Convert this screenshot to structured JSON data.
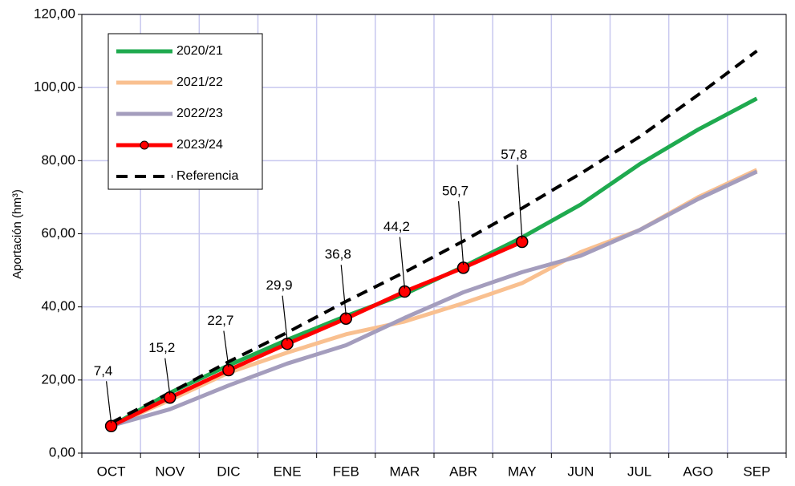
{
  "chart_data": {
    "type": "line",
    "y_label": "Aportación (hm³)",
    "categories": [
      "OCT",
      "NOV",
      "DIC",
      "ENE",
      "FEB",
      "MAR",
      "ABR",
      "MAY",
      "JUN",
      "JUL",
      "AGO",
      "SEP"
    ],
    "series": [
      {
        "name": "2020/21",
        "color": "#1faa4f",
        "values": [
          7.4,
          16.5,
          24,
          31,
          37.5,
          43.5,
          51,
          59,
          68,
          79,
          88.5,
          97
        ]
      },
      {
        "name": "2021/22",
        "color": "#f9c090",
        "values": [
          7.5,
          14.5,
          22,
          27.5,
          32.5,
          36,
          41,
          46.5,
          55,
          61,
          70,
          77.5
        ]
      },
      {
        "name": "2022/23",
        "color": "#a49dbd",
        "values": [
          7.5,
          12,
          18.5,
          24.5,
          29.5,
          37,
          44,
          49.5,
          54,
          61,
          69.5,
          77
        ]
      },
      {
        "name": "2023/24",
        "color": "#ff0000",
        "marker": true,
        "values": [
          7.4,
          15.2,
          22.7,
          29.9,
          36.8,
          44.2,
          50.7,
          57.8,
          null,
          null,
          null,
          null
        ],
        "value_labels": [
          "7,4",
          "15,2",
          "22,7",
          "29,9",
          "36,8",
          "44,2",
          "50,7",
          "57,8",
          null,
          null,
          null,
          null
        ]
      },
      {
        "name": "Referencia",
        "color": "#000000",
        "dashed": true,
        "values": [
          8.3,
          16.5,
          25,
          33,
          41.5,
          49.5,
          58,
          67,
          76.5,
          86.5,
          98,
          110
        ]
      }
    ],
    "ylim": [
      0,
      120
    ],
    "yticks": [
      {
        "value": 0,
        "label": "0,00"
      },
      {
        "value": 20,
        "label": "20,00"
      },
      {
        "value": 40,
        "label": "40,00"
      },
      {
        "value": 60,
        "label": "60,00"
      },
      {
        "value": 80,
        "label": "80,00"
      },
      {
        "value": 100,
        "label": "100,00"
      },
      {
        "value": 120,
        "label": "120,00"
      }
    ],
    "grid": true,
    "legend": "upper left"
  }
}
